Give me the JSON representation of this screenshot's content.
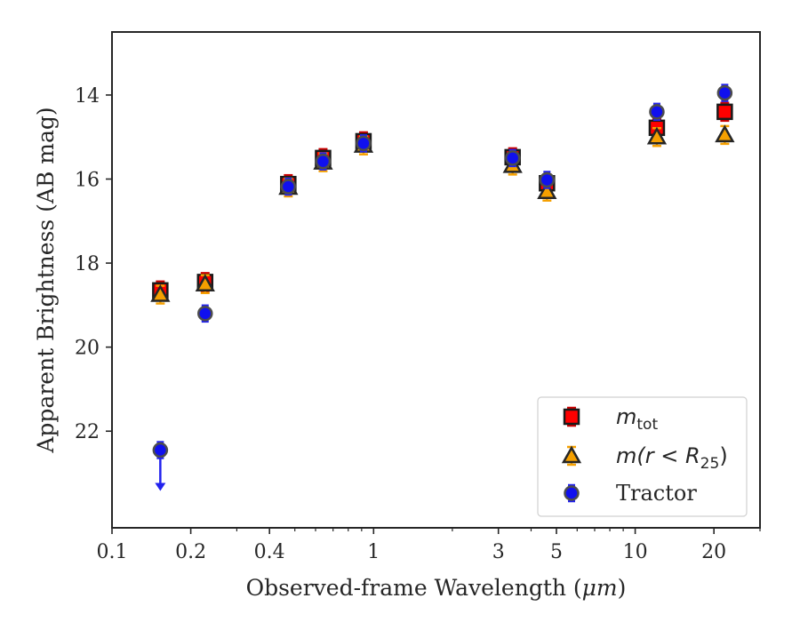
{
  "chart_data": {
    "type": "scatter",
    "xlabel_prefix": "Observed-frame Wavelength (",
    "xlabel_unit": "μm",
    "xlabel_suffix": ")",
    "ylabel": "Apparent Brightness (AB mag)",
    "x_scale": "log",
    "y_inverted": true,
    "xlim": [
      0.1,
      30
    ],
    "ylim": [
      24.3,
      12.5
    ],
    "x_ticks": [
      {
        "value": 0.1,
        "label": "0.1"
      },
      {
        "value": 0.2,
        "label": "0.2"
      },
      {
        "value": 0.4,
        "label": "0.4"
      },
      {
        "value": 1,
        "label": "1"
      },
      {
        "value": 3,
        "label": "3"
      },
      {
        "value": 5,
        "label": "5"
      },
      {
        "value": 10,
        "label": "10"
      },
      {
        "value": 20,
        "label": "20"
      }
    ],
    "y_ticks": [
      {
        "value": 14,
        "label": "14"
      },
      {
        "value": 16,
        "label": "16"
      },
      {
        "value": 18,
        "label": "18"
      },
      {
        "value": 20,
        "label": "20"
      },
      {
        "value": 22,
        "label": "22"
      }
    ],
    "grid": false,
    "legend_position": "bottom-right",
    "series": [
      {
        "legend_base": "m",
        "legend_sub": "tot",
        "marker": "square",
        "color": "#ff0000",
        "edge": "#1a1a1a",
        "errcolor": "#cc0000",
        "points": [
          {
            "x": 0.153,
            "y": 18.65
          },
          {
            "x": 0.227,
            "y": 18.45
          },
          {
            "x": 0.472,
            "y": 16.12
          },
          {
            "x": 0.641,
            "y": 15.5
          },
          {
            "x": 0.915,
            "y": 15.1
          },
          {
            "x": 3.4,
            "y": 15.48
          },
          {
            "x": 4.6,
            "y": 16.1
          },
          {
            "x": 12.1,
            "y": 14.78
          },
          {
            "x": 22.0,
            "y": 14.4
          }
        ]
      },
      {
        "legend_base": "m",
        "legend_paren": "(r < R",
        "legend_sub": "25",
        "legend_close": ")",
        "marker": "triangle",
        "color": "#f5a000",
        "edge": "#262626",
        "errcolor": "#f5a000",
        "points": [
          {
            "x": 0.153,
            "y": 18.75
          },
          {
            "x": 0.227,
            "y": 18.5
          },
          {
            "x": 0.472,
            "y": 16.2
          },
          {
            "x": 0.641,
            "y": 15.6
          },
          {
            "x": 0.915,
            "y": 15.2
          },
          {
            "x": 3.4,
            "y": 15.68
          },
          {
            "x": 4.6,
            "y": 16.3
          },
          {
            "x": 12.1,
            "y": 15.0
          },
          {
            "x": 22.0,
            "y": 14.95
          }
        ]
      },
      {
        "legend_label": "Tractor",
        "marker": "circle",
        "color": "#1010ee",
        "edge": "#4d4d4d",
        "errcolor": "#2222ee",
        "points": [
          {
            "x": 0.153,
            "y": 22.45,
            "upper_limit": true
          },
          {
            "x": 0.227,
            "y": 19.2
          },
          {
            "x": 0.472,
            "y": 16.18
          },
          {
            "x": 0.641,
            "y": 15.58
          },
          {
            "x": 0.915,
            "y": 15.15
          },
          {
            "x": 3.4,
            "y": 15.5
          },
          {
            "x": 4.6,
            "y": 16.02
          },
          {
            "x": 12.1,
            "y": 14.4
          },
          {
            "x": 22.0,
            "y": 13.95
          }
        ]
      }
    ]
  }
}
